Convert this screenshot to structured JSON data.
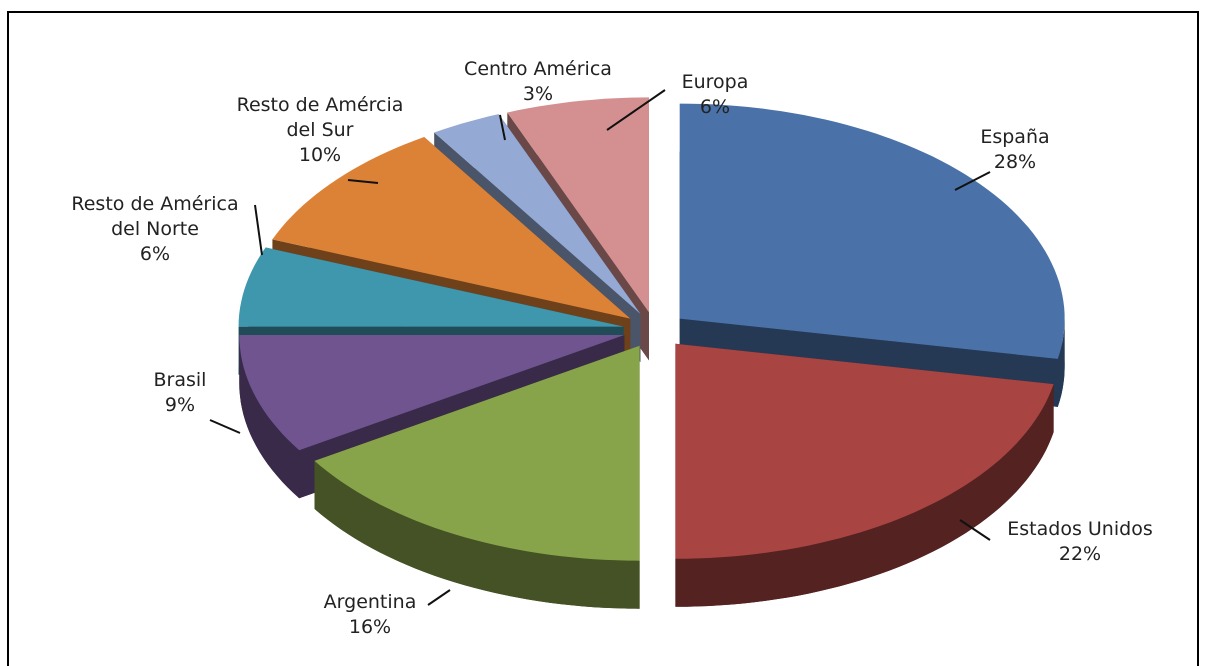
{
  "chart_data": {
    "type": "pie",
    "categories": [
      "España",
      "Estados Unidos",
      "Argentina",
      "Brasil",
      "Resto de América del Norte",
      "Resto de Amércia del Sur",
      "Centro América",
      "Europa"
    ],
    "values": [
      28,
      22,
      16,
      9,
      6,
      10,
      3,
      6
    ],
    "value_labels": [
      "28%",
      "22%",
      "16%",
      "9%",
      "6%",
      "10%",
      "3%",
      "6%"
    ],
    "colors": [
      "#4a72a8",
      "#a84442",
      "#88a44a",
      "#6f548f",
      "#3f97ae",
      "#dc8236",
      "#94a9d4",
      "#d49090"
    ]
  }
}
